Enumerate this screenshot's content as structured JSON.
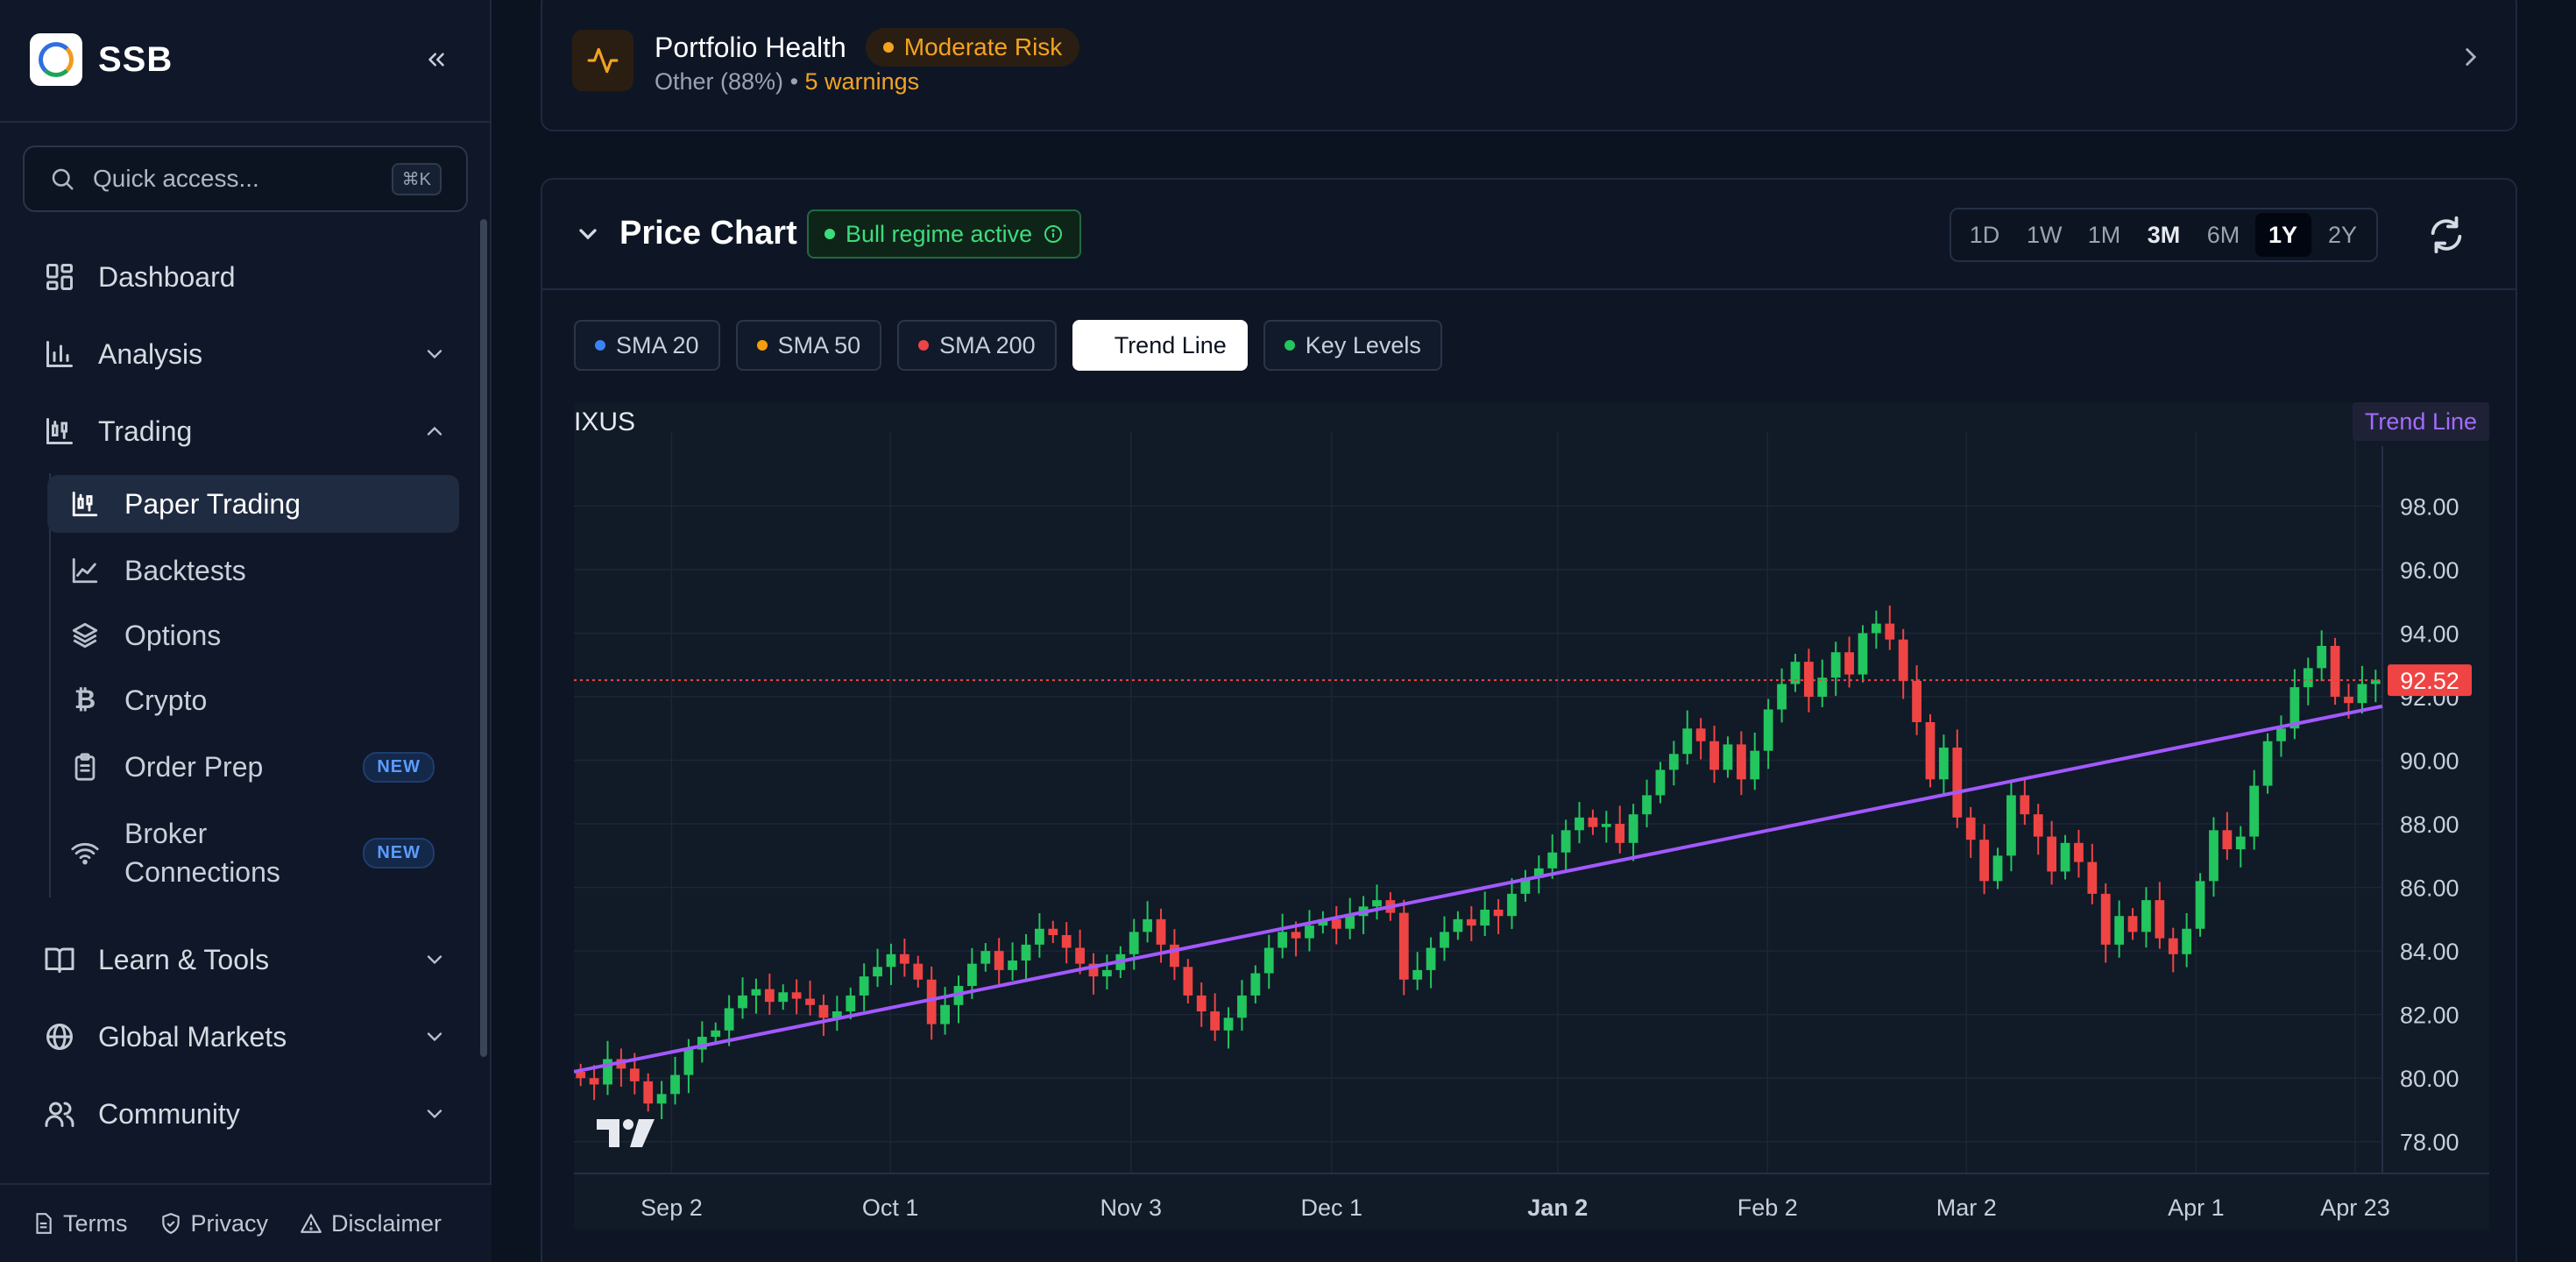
{
  "app": {
    "name": "SSB"
  },
  "search": {
    "placeholder": "Quick access...",
    "shortcut": "⌘K"
  },
  "nav": {
    "dashboard": "Dashboard",
    "analysis": "Analysis",
    "trading": "Trading",
    "trading_items": [
      {
        "label": "Paper Trading"
      },
      {
        "label": "Backtests"
      },
      {
        "label": "Options"
      },
      {
        "label": "Crypto"
      },
      {
        "label": "Order Prep",
        "badge": "NEW"
      },
      {
        "label": "Broker Connections",
        "badge": "NEW"
      }
    ],
    "learn": "Learn & Tools",
    "global": "Global Markets",
    "community": "Community"
  },
  "footer": {
    "terms": "Terms",
    "privacy": "Privacy",
    "disclaimer": "Disclaimer"
  },
  "health": {
    "title": "Portfolio Health",
    "risk": "Moderate Risk",
    "sub": "Other (88%)",
    "sep": " • ",
    "warnings": "5 warnings"
  },
  "price_chart": {
    "title": "Price Chart",
    "regime": "Bull regime active",
    "timeframes": [
      "1D",
      "1W",
      "1M",
      "3M",
      "6M",
      "1Y",
      "2Y"
    ],
    "active_timeframe": "1Y",
    "toggles": [
      {
        "label": "SMA 20",
        "color": "#3b82f6",
        "active": false
      },
      {
        "label": "SMA 50",
        "color": "#f59e0b",
        "active": false
      },
      {
        "label": "SMA 200",
        "color": "#ef4444",
        "active": false
      },
      {
        "label": "Trend Line",
        "color": "#ffffff",
        "active": true
      },
      {
        "label": "Key Levels",
        "color": "#22c55e",
        "active": false
      }
    ],
    "symbol": "IXUS",
    "trend_tag": "Trend Line",
    "current_price": "92.52"
  },
  "chart_data": {
    "type": "candlestick",
    "title": "IXUS",
    "x_ticks": [
      "Sep 2",
      "Oct 1",
      "Nov 3",
      "Dec 1",
      "Jan 2",
      "Feb 2",
      "Mar 2",
      "Apr 1",
      "Apr 23"
    ],
    "y_ticks": [
      "98.00",
      "96.00",
      "94.00",
      "92.00",
      "90.00",
      "88.00",
      "86.00",
      "84.00",
      "82.00",
      "80.00",
      "78.00"
    ],
    "ylim": [
      77,
      99.5
    ],
    "last_price": 92.52,
    "trend_line": {
      "start": 80.2,
      "end": 91.7
    },
    "closes": [
      80.0,
      79.8,
      80.6,
      80.3,
      79.9,
      79.2,
      79.5,
      80.1,
      80.9,
      81.3,
      81.5,
      82.2,
      82.6,
      82.8,
      82.4,
      82.7,
      82.5,
      82.3,
      81.9,
      82.1,
      82.6,
      83.2,
      83.5,
      83.9,
      83.6,
      83.1,
      81.7,
      82.3,
      82.9,
      83.6,
      84.0,
      83.4,
      83.7,
      84.2,
      84.7,
      84.5,
      84.1,
      83.6,
      83.2,
      83.4,
      83.9,
      84.6,
      85.0,
      84.2,
      83.5,
      82.6,
      82.1,
      81.5,
      81.9,
      82.6,
      83.3,
      84.1,
      84.6,
      84.4,
      84.8,
      85.0,
      84.7,
      85.1,
      85.4,
      85.6,
      85.2,
      83.1,
      83.4,
      84.1,
      84.6,
      85.0,
      84.8,
      85.3,
      85.1,
      85.8,
      86.3,
      86.6,
      87.1,
      87.8,
      88.2,
      87.9,
      88.0,
      87.4,
      88.3,
      88.9,
      89.7,
      90.2,
      91.0,
      90.6,
      89.7,
      90.5,
      89.4,
      90.3,
      91.6,
      92.4,
      93.1,
      92.0,
      92.6,
      93.4,
      92.7,
      94.0,
      94.3,
      93.8,
      92.5,
      91.2,
      89.4,
      90.4,
      88.2,
      87.5,
      86.2,
      87.0,
      88.9,
      88.3,
      87.6,
      86.5,
      87.4,
      86.8,
      85.8,
      84.2,
      85.1,
      84.6,
      85.6,
      84.4,
      83.9,
      84.7,
      86.2,
      87.8,
      87.2,
      87.6,
      89.2,
      90.6,
      91.0,
      92.3,
      92.9,
      93.6,
      92.0,
      91.8,
      92.4,
      92.52
    ]
  }
}
